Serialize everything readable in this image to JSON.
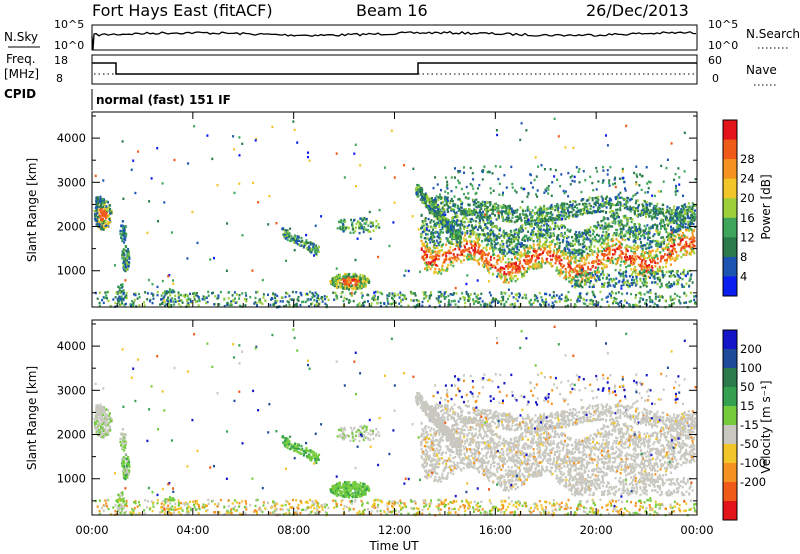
{
  "header": {
    "station": "Fort Hays East (fitACF)",
    "beam": "Beam 16",
    "date": "26/Dec/2013"
  },
  "top_panels": {
    "nsky_label": "N.Sky",
    "nsearch_label": "N.Search",
    "noise_ticks": [
      "10^5",
      "10^0"
    ],
    "freq_label": "Freq.",
    "freq_unit": "[MHz]",
    "freq_ticks": [
      "18",
      "8"
    ],
    "nave_label": "Nave",
    "nave_ticks": [
      "60",
      "0"
    ],
    "cpid_label": "CPID",
    "cpid_value": "normal (fast) 151 IF"
  },
  "chart_data": [
    {
      "type": "heatmap",
      "quantity": "Power",
      "ylabel": "Slant Range [km]",
      "ylim": [
        180,
        4590
      ],
      "y_ticks": [
        1000,
        2000,
        3000,
        4000
      ],
      "x_range_hours": [
        0,
        24
      ],
      "colorbar": {
        "label": "Power [dB]",
        "ticks": [
          "4",
          "8",
          "12",
          "16",
          "20",
          "24",
          "28"
        ],
        "colors": [
          "#0a1ef0",
          "#1b55b0",
          "#2a7a4a",
          "#3ea55a",
          "#9dcf3a",
          "#f2c628",
          "#f59320",
          "#f05a18",
          "#e2141a"
        ]
      }
    },
    {
      "type": "heatmap",
      "quantity": "Velocity",
      "ylabel": "Slant Range [km]",
      "ylim": [
        180,
        4590
      ],
      "y_ticks": [
        1000,
        2000,
        3000,
        4000
      ],
      "x_range_hours": [
        0,
        24
      ],
      "colorbar": {
        "label": "Velocity [m s⁻¹]",
        "ticks": [
          "200",
          "100",
          "50",
          "15",
          "-15",
          "-50",
          "-100",
          "-200"
        ],
        "colors": [
          "#1414c8",
          "#1e4a9a",
          "#2a7a4a",
          "#34a050",
          "#74cc3c",
          "#c8c8c0",
          "#f2c628",
          "#f59320",
          "#f05a18",
          "#e2141a"
        ]
      }
    }
  ],
  "x_axis": {
    "label": "Time UT",
    "ticks": [
      "00:00",
      "04:00",
      "08:00",
      "12:00",
      "16:00",
      "20:00",
      "00:00"
    ]
  }
}
